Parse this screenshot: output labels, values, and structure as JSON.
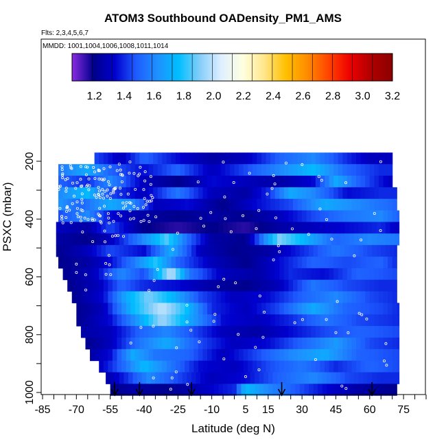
{
  "chart_data": {
    "type": "heatmap",
    "title": "ATOM3 Southbound OADensity_PM1_AMS",
    "notes": {
      "flights": "Flts: 2,3,4,5,6,7",
      "dates": "MMDD: 1001,1004,1006,1008,1011,1014"
    },
    "xlabel": "Latitude (deg N)",
    "ylabel": "PSXC (mbar)",
    "xlim": [
      -85,
      85
    ],
    "ylim": [
      1000,
      150
    ],
    "x_ticks": [
      -85,
      -70,
      -55,
      -40,
      -25,
      -10,
      5,
      15,
      30,
      45,
      60,
      75
    ],
    "y_ticks": [
      200,
      400,
      600,
      800,
      1000
    ],
    "colorbar": {
      "ticks": [
        "1.2",
        "1.4",
        "1.6",
        "1.8",
        "2.0",
        "2.2",
        "2.4",
        "2.6",
        "2.8",
        "3.0",
        "3.2"
      ],
      "range": [
        1.05,
        3.2
      ],
      "colors": [
        "#8a2be2",
        "#00008b",
        "#0000cd",
        "#1e5cff",
        "#1e90ff",
        "#00bfff",
        "#87cefa",
        "#e0f0ff",
        "#ffffe0",
        "#ffe68a",
        "#ffc000",
        "#ff8c00",
        "#ff4500",
        "#ee0000",
        "#b00000",
        "#8b0000"
      ]
    },
    "arrow_latitudes": [
      -53,
      -42,
      -19,
      21,
      61
    ],
    "pressure_bands": [
      {
        "p": 190,
        "x0": -62,
        "x1": 70,
        "v": [
          [
            -62,
            1.45
          ],
          [
            -50,
            1.3
          ],
          [
            -40,
            1.5
          ],
          [
            -25,
            1.35
          ],
          [
            -10,
            1.25
          ],
          [
            5,
            1.3
          ],
          [
            20,
            1.5
          ],
          [
            35,
            1.6
          ],
          [
            50,
            1.4
          ],
          [
            60,
            1.3
          ],
          [
            70,
            1.3
          ]
        ]
      },
      {
        "p": 230,
        "x0": -78,
        "x1": 70,
        "v": [
          [
            -78,
            1.55
          ],
          [
            -65,
            1.7
          ],
          [
            -55,
            1.5
          ],
          [
            -40,
            1.35
          ],
          [
            -25,
            1.5
          ],
          [
            -10,
            1.3
          ],
          [
            5,
            1.45
          ],
          [
            20,
            1.6
          ],
          [
            35,
            1.75
          ],
          [
            50,
            1.5
          ],
          [
            65,
            1.4
          ],
          [
            70,
            1.4
          ]
        ]
      },
      {
        "p": 270,
        "x0": -78,
        "x1": 70,
        "v": [
          [
            -78,
            1.5
          ],
          [
            -65,
            1.4
          ],
          [
            -55,
            1.6
          ],
          [
            -40,
            1.3
          ],
          [
            -25,
            1.2
          ],
          [
            -10,
            1.35
          ],
          [
            5,
            1.3
          ],
          [
            20,
            1.25
          ],
          [
            35,
            1.35
          ],
          [
            45,
            1.7
          ],
          [
            55,
            1.5
          ],
          [
            70,
            1.3
          ]
        ]
      },
      {
        "p": 310,
        "x0": -78,
        "x1": 72,
        "v": [
          [
            -78,
            1.6
          ],
          [
            -65,
            1.75
          ],
          [
            -55,
            1.45
          ],
          [
            -40,
            1.3
          ],
          [
            -25,
            1.55
          ],
          [
            -10,
            1.3
          ],
          [
            5,
            1.25
          ],
          [
            15,
            1.4
          ],
          [
            25,
            1.7
          ],
          [
            35,
            1.6
          ],
          [
            50,
            1.35
          ],
          [
            65,
            1.4
          ],
          [
            72,
            1.4
          ]
        ]
      },
      {
        "p": 350,
        "x0": -78,
        "x1": 72,
        "v": [
          [
            -78,
            1.65
          ],
          [
            -68,
            1.5
          ],
          [
            -55,
            1.7
          ],
          [
            -45,
            1.6
          ],
          [
            -35,
            1.3
          ],
          [
            -20,
            1.35
          ],
          [
            -5,
            1.2
          ],
          [
            10,
            1.35
          ],
          [
            25,
            1.45
          ],
          [
            40,
            1.7
          ],
          [
            55,
            1.6
          ],
          [
            72,
            1.5
          ]
        ]
      },
      {
        "p": 390,
        "x0": -78,
        "x1": 73,
        "v": [
          [
            -78,
            1.45
          ],
          [
            -65,
            1.6
          ],
          [
            -55,
            1.35
          ],
          [
            -40,
            1.25
          ],
          [
            -25,
            1.2
          ],
          [
            -10,
            1.25
          ],
          [
            5,
            1.2
          ],
          [
            20,
            1.3
          ],
          [
            35,
            1.45
          ],
          [
            50,
            1.55
          ],
          [
            65,
            1.6
          ],
          [
            73,
            1.5
          ]
        ]
      },
      {
        "p": 430,
        "x0": -79,
        "x1": 73,
        "v": [
          [
            -79,
            1.3
          ],
          [
            -65,
            1.25
          ],
          [
            -55,
            1.45
          ],
          [
            -40,
            1.2
          ],
          [
            -25,
            1.15
          ],
          [
            -10,
            1.2
          ],
          [
            5,
            1.15
          ],
          [
            20,
            1.25
          ],
          [
            35,
            1.3
          ],
          [
            50,
            1.35
          ],
          [
            65,
            1.4
          ],
          [
            73,
            1.3
          ]
        ]
      },
      {
        "p": 470,
        "x0": -79,
        "x1": 73,
        "v": [
          [
            -79,
            1.25
          ],
          [
            -65,
            1.2
          ],
          [
            -55,
            1.3
          ],
          [
            -45,
            1.5
          ],
          [
            -30,
            1.85
          ],
          [
            -20,
            1.5
          ],
          [
            -10,
            1.25
          ],
          [
            5,
            1.2
          ],
          [
            20,
            1.9
          ],
          [
            30,
            1.75
          ],
          [
            45,
            1.5
          ],
          [
            60,
            1.6
          ],
          [
            73,
            1.55
          ]
        ]
      },
      {
        "p": 510,
        "x0": -79,
        "x1": 72,
        "v": [
          [
            -79,
            1.2
          ],
          [
            -65,
            1.3
          ],
          [
            -55,
            1.45
          ],
          [
            -40,
            1.35
          ],
          [
            -28,
            1.7
          ],
          [
            -15,
            1.3
          ],
          [
            0,
            1.2
          ],
          [
            15,
            1.25
          ],
          [
            30,
            1.4
          ],
          [
            45,
            1.55
          ],
          [
            60,
            1.45
          ],
          [
            72,
            1.4
          ]
        ]
      },
      {
        "p": 550,
        "x0": -78,
        "x1": 72,
        "v": [
          [
            -78,
            1.2
          ],
          [
            -65,
            1.25
          ],
          [
            -55,
            1.35
          ],
          [
            -45,
            1.55
          ],
          [
            -35,
            1.8
          ],
          [
            -25,
            1.5
          ],
          [
            -10,
            1.3
          ],
          [
            5,
            1.2
          ],
          [
            20,
            1.35
          ],
          [
            35,
            1.5
          ],
          [
            50,
            1.45
          ],
          [
            65,
            1.5
          ],
          [
            72,
            1.4
          ]
        ]
      },
      {
        "p": 590,
        "x0": -76,
        "x1": 72,
        "v": [
          [
            -76,
            1.2
          ],
          [
            -62,
            1.3
          ],
          [
            -50,
            1.6
          ],
          [
            -40,
            1.45
          ],
          [
            -28,
            2.0
          ],
          [
            -20,
            1.55
          ],
          [
            -5,
            1.3
          ],
          [
            10,
            1.25
          ],
          [
            25,
            1.4
          ],
          [
            40,
            1.35
          ],
          [
            55,
            1.5
          ],
          [
            72,
            1.45
          ]
        ]
      },
      {
        "p": 630,
        "x0": -74,
        "x1": 72,
        "v": [
          [
            -74,
            1.2
          ],
          [
            -60,
            1.3
          ],
          [
            -50,
            1.5
          ],
          [
            -40,
            1.4
          ],
          [
            -25,
            1.35
          ],
          [
            -10,
            1.25
          ],
          [
            5,
            1.2
          ],
          [
            20,
            1.3
          ],
          [
            35,
            1.55
          ],
          [
            50,
            1.45
          ],
          [
            65,
            1.4
          ],
          [
            72,
            1.4
          ]
        ]
      },
      {
        "p": 670,
        "x0": -72,
        "x1": 72,
        "v": [
          [
            -72,
            1.2
          ],
          [
            -58,
            1.35
          ],
          [
            -48,
            1.7
          ],
          [
            -38,
            1.9
          ],
          [
            -28,
            1.75
          ],
          [
            -15,
            1.45
          ],
          [
            0,
            1.3
          ],
          [
            15,
            1.35
          ],
          [
            30,
            1.5
          ],
          [
            45,
            1.6
          ],
          [
            60,
            1.45
          ],
          [
            72,
            1.4
          ]
        ]
      },
      {
        "p": 710,
        "x0": -70,
        "x1": 73,
        "v": [
          [
            -70,
            1.2
          ],
          [
            -58,
            1.3
          ],
          [
            -45,
            1.75
          ],
          [
            -32,
            2.0
          ],
          [
            -22,
            1.8
          ],
          [
            -10,
            1.4
          ],
          [
            5,
            1.3
          ],
          [
            20,
            1.45
          ],
          [
            35,
            1.7
          ],
          [
            50,
            1.5
          ],
          [
            65,
            1.45
          ],
          [
            73,
            1.4
          ]
        ]
      },
      {
        "p": 750,
        "x0": -70,
        "x1": 73,
        "v": [
          [
            -70,
            1.2
          ],
          [
            -55,
            1.35
          ],
          [
            -45,
            1.6
          ],
          [
            -32,
            1.95
          ],
          [
            -20,
            1.7
          ],
          [
            -5,
            1.35
          ],
          [
            10,
            1.3
          ],
          [
            25,
            1.4
          ],
          [
            40,
            1.55
          ],
          [
            55,
            1.45
          ],
          [
            73,
            1.4
          ]
        ]
      },
      {
        "p": 790,
        "x0": -68,
        "x1": 73,
        "v": [
          [
            -68,
            1.25
          ],
          [
            -55,
            1.3
          ],
          [
            -42,
            1.5
          ],
          [
            -30,
            1.6
          ],
          [
            -18,
            1.45
          ],
          [
            -5,
            1.3
          ],
          [
            10,
            1.25
          ],
          [
            25,
            1.35
          ],
          [
            40,
            1.45
          ],
          [
            55,
            1.5
          ],
          [
            73,
            1.45
          ]
        ]
      },
      {
        "p": 830,
        "x0": -66,
        "x1": 73,
        "v": [
          [
            -66,
            1.2
          ],
          [
            -55,
            1.3
          ],
          [
            -42,
            1.55
          ],
          [
            -30,
            1.7
          ],
          [
            -15,
            1.45
          ],
          [
            0,
            1.3
          ],
          [
            15,
            1.35
          ],
          [
            30,
            1.5
          ],
          [
            45,
            1.65
          ],
          [
            60,
            1.45
          ],
          [
            73,
            1.4
          ]
        ]
      },
      {
        "p": 870,
        "x0": -64,
        "x1": 73,
        "v": [
          [
            -64,
            1.25
          ],
          [
            -55,
            1.35
          ],
          [
            -45,
            1.7
          ],
          [
            -35,
            1.55
          ],
          [
            -20,
            1.5
          ],
          [
            -5,
            1.3
          ],
          [
            10,
            1.45
          ],
          [
            25,
            1.6
          ],
          [
            40,
            1.7
          ],
          [
            55,
            1.5
          ],
          [
            73,
            1.45
          ]
        ]
      },
      {
        "p": 910,
        "x0": -60,
        "x1": 73,
        "v": [
          [
            -60,
            1.3
          ],
          [
            -50,
            1.5
          ],
          [
            -40,
            1.75
          ],
          [
            -28,
            1.55
          ],
          [
            -15,
            1.35
          ],
          [
            0,
            1.3
          ],
          [
            15,
            1.45
          ],
          [
            30,
            1.55
          ],
          [
            45,
            1.4
          ],
          [
            60,
            1.5
          ],
          [
            73,
            1.45
          ]
        ]
      },
      {
        "p": 950,
        "x0": -57,
        "x1": 73,
        "v": [
          [
            -57,
            1.25
          ],
          [
            -48,
            1.4
          ],
          [
            -38,
            1.6
          ],
          [
            -25,
            1.45
          ],
          [
            -10,
            1.3
          ],
          [
            5,
            1.35
          ],
          [
            20,
            1.5
          ],
          [
            35,
            1.6
          ],
          [
            50,
            1.45
          ],
          [
            65,
            1.4
          ],
          [
            73,
            1.4
          ]
        ]
      },
      {
        "p": 990,
        "x0": -55,
        "x1": 72,
        "v": [
          [
            -55,
            1.2
          ],
          [
            -45,
            1.25
          ],
          [
            -30,
            1.2
          ],
          [
            -15,
            1.3
          ],
          [
            0,
            1.4
          ],
          [
            5,
            1.75
          ],
          [
            15,
            1.6
          ],
          [
            25,
            1.5
          ],
          [
            40,
            1.35
          ],
          [
            55,
            1.25
          ],
          [
            72,
            1.2
          ]
        ]
      }
    ]
  }
}
